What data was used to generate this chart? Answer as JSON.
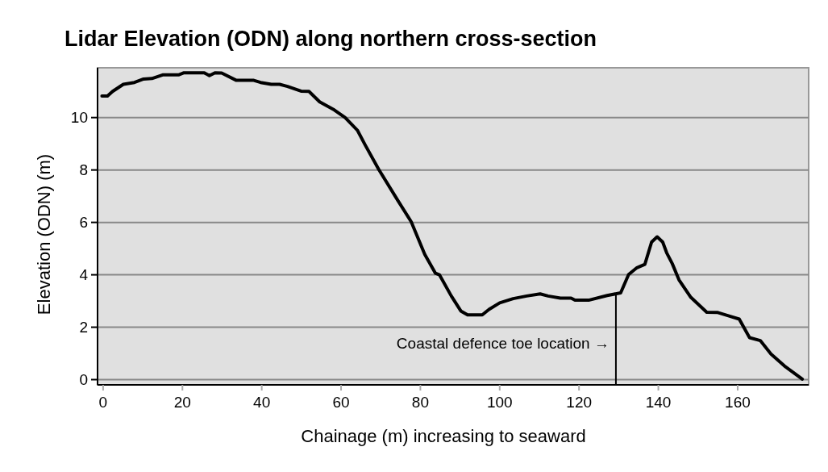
{
  "chart_data": {
    "type": "line",
    "title": "Lidar Elevation (ODN) along northern cross-section",
    "xlabel": "Chainage (m) increasing to seaward",
    "ylabel": "Elevation (ODN) (m)",
    "x": [
      -0.3,
      1.1,
      2.4,
      5.1,
      7.9,
      10.2,
      12.3,
      15.0,
      19.0,
      20.4,
      25.5,
      26.8,
      28.2,
      29.9,
      33.6,
      38.0,
      39.7,
      42.4,
      44.5,
      46.5,
      49.9,
      51.9,
      54.6,
      58.3,
      61.0,
      64.1,
      66.1,
      69.5,
      74.3,
      77.7,
      81.1,
      83.8,
      84.8,
      87.8,
      90.2,
      91.9,
      95.6,
      97.3,
      100.0,
      103.4,
      106.8,
      110.2,
      112.2,
      115.3,
      118.0,
      119.0,
      122.4,
      127.1,
      130.5,
      132.5,
      134.6,
      136.6,
      138.3,
      139.7,
      141.1,
      142.1,
      143.5,
      145.2,
      148.2,
      152.2,
      155.0,
      158.0,
      160.4,
      163.0,
      165.7,
      168.4,
      171.8,
      176.3
    ],
    "series": [
      {
        "color": "#000000",
        "values": [
          10.82,
          10.82,
          11.0,
          11.27,
          11.34,
          11.47,
          11.49,
          11.63,
          11.63,
          11.71,
          11.71,
          11.6,
          11.71,
          11.7,
          11.42,
          11.42,
          11.34,
          11.27,
          11.27,
          11.19,
          11.01,
          11.0,
          10.6,
          10.29,
          10.0,
          9.52,
          8.95,
          8.02,
          6.84,
          6.02,
          4.78,
          4.06,
          4.0,
          3.19,
          2.62,
          2.47,
          2.47,
          2.68,
          2.93,
          3.09,
          3.19,
          3.27,
          3.19,
          3.11,
          3.11,
          3.03,
          3.03,
          3.21,
          3.31,
          4.01,
          4.27,
          4.4,
          5.25,
          5.45,
          5.25,
          4.84,
          4.43,
          3.81,
          3.14,
          2.57,
          2.56,
          2.42,
          2.31,
          1.6,
          1.49,
          0.98,
          0.52,
          0.02
        ]
      }
    ],
    "xlim": [
      -1.4,
      177.9
    ],
    "ylim": [
      -0.2,
      11.9
    ],
    "xticks": [
      0,
      20,
      40,
      60,
      80,
      100,
      120,
      140,
      160
    ],
    "yticks": [
      0,
      2,
      4,
      6,
      8,
      10
    ],
    "grid": "y",
    "marker": "none",
    "line_style": "solid",
    "ref_lines": [
      {
        "axis": "x",
        "value": 129.3,
        "label": "Coastal defence toe location →",
        "color": "#000000"
      }
    ]
  }
}
